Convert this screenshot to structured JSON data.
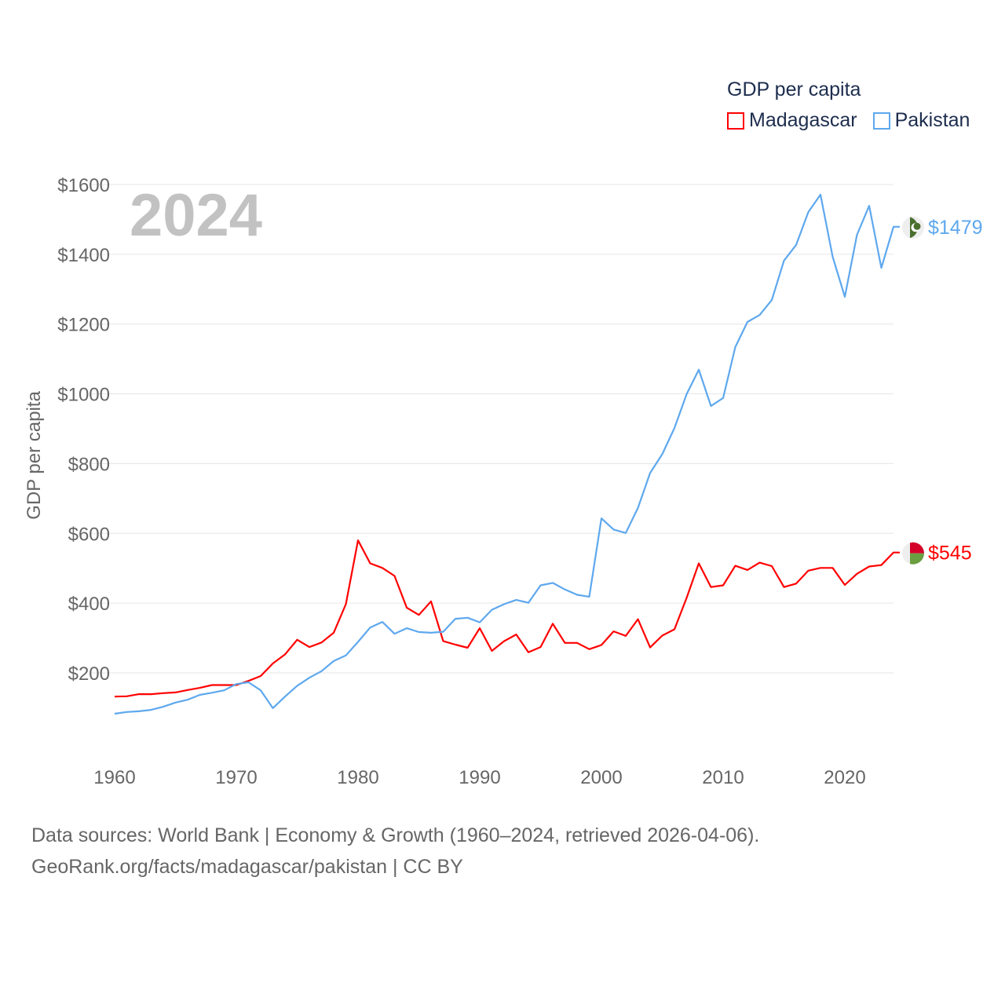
{
  "chart_data": {
    "type": "line",
    "title": "GDP per capita",
    "year_watermark": "2024",
    "xlabel": "",
    "ylabel": "GDP per capita",
    "xlim": [
      1960,
      2024
    ],
    "ylim": [
      0,
      1700
    ],
    "grid": true,
    "legend_placement": "top-right",
    "x_ticks": [
      1960,
      1970,
      1980,
      1990,
      2000,
      2010,
      2020
    ],
    "x_tick_labels": [
      "1960",
      "1970",
      "1980",
      "1990",
      "2000",
      "2010",
      "2020"
    ],
    "y_ticks": [
      200,
      400,
      600,
      800,
      1000,
      1200,
      1400,
      1600
    ],
    "y_tick_labels": [
      "$200",
      "$400",
      "$600",
      "$800",
      "$1000",
      "$1200",
      "$1400",
      "$1600"
    ],
    "x_start": 1960,
    "series": [
      {
        "name": "Madagascar",
        "color": "#ff0000",
        "end_label": "$545",
        "values": [
          132,
          133,
          139,
          139,
          142,
          144,
          151,
          157,
          165,
          165,
          165,
          177,
          191,
          227,
          253,
          295,
          274,
          287,
          315,
          397,
          580,
          514,
          501,
          478,
          387,
          366,
          405,
          291,
          281,
          272,
          328,
          263,
          291,
          310,
          259,
          274,
          341,
          286,
          286,
          268,
          280,
          319,
          306,
          354,
          273,
          307,
          325,
          415,
          514,
          446,
          451,
          507,
          495,
          516,
          506,
          446,
          456,
          493,
          501,
          501,
          452,
          484,
          505,
          509,
          545
        ]
      },
      {
        "name": "Pakistan",
        "color": "#5ea8ee",
        "end_label": "$1479",
        "values": [
          83,
          88,
          90,
          94,
          103,
          115,
          123,
          137,
          143,
          150,
          168,
          173,
          150,
          99,
          132,
          163,
          186,
          205,
          234,
          250,
          289,
          330,
          346,
          312,
          328,
          317,
          315,
          318,
          355,
          358,
          345,
          381,
          397,
          409,
          401,
          451,
          458,
          439,
          424,
          418,
          643,
          611,
          601,
          673,
          773,
          827,
          902,
          999,
          1069,
          965,
          988,
          1134,
          1206,
          1226,
          1269,
          1382,
          1427,
          1521,
          1571,
          1393,
          1278,
          1456,
          1539,
          1361,
          1479
        ]
      }
    ]
  },
  "footer": {
    "line1": "Data sources: World Bank | Economy & Growth (1960–2024, retrieved 2026-04-06).",
    "line2": "GeoRank.org/facts/madagascar/pakistan | CC BY"
  }
}
